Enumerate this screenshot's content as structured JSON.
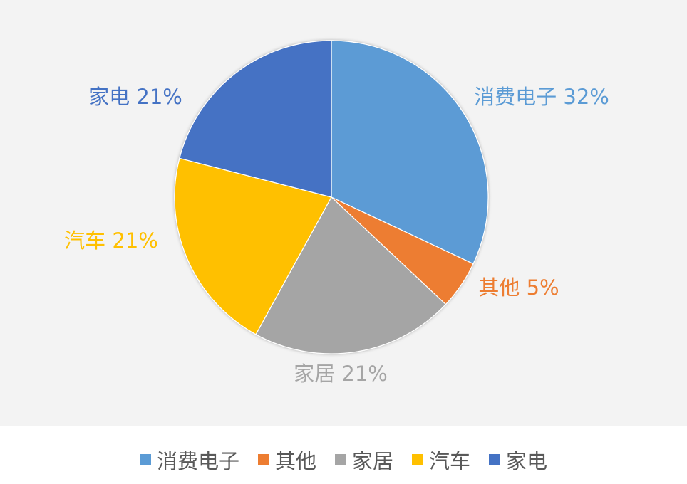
{
  "chart_data": {
    "type": "pie",
    "categories": [
      "消费电子",
      "其他",
      "家居",
      "汽车",
      "家电"
    ],
    "values": [
      32,
      5,
      21,
      21,
      21
    ],
    "unit": "%",
    "colors": [
      "#5b9bd5",
      "#ed7d31",
      "#a5a5a5",
      "#ffc000",
      "#4472c4"
    ],
    "data_labels": [
      "消费电子  32%",
      "其他  5%",
      "家居  21%",
      "汽车  21%",
      "家电  21%"
    ],
    "start_angle_deg": 0,
    "direction": "clockwise",
    "legend_position": "bottom"
  }
}
